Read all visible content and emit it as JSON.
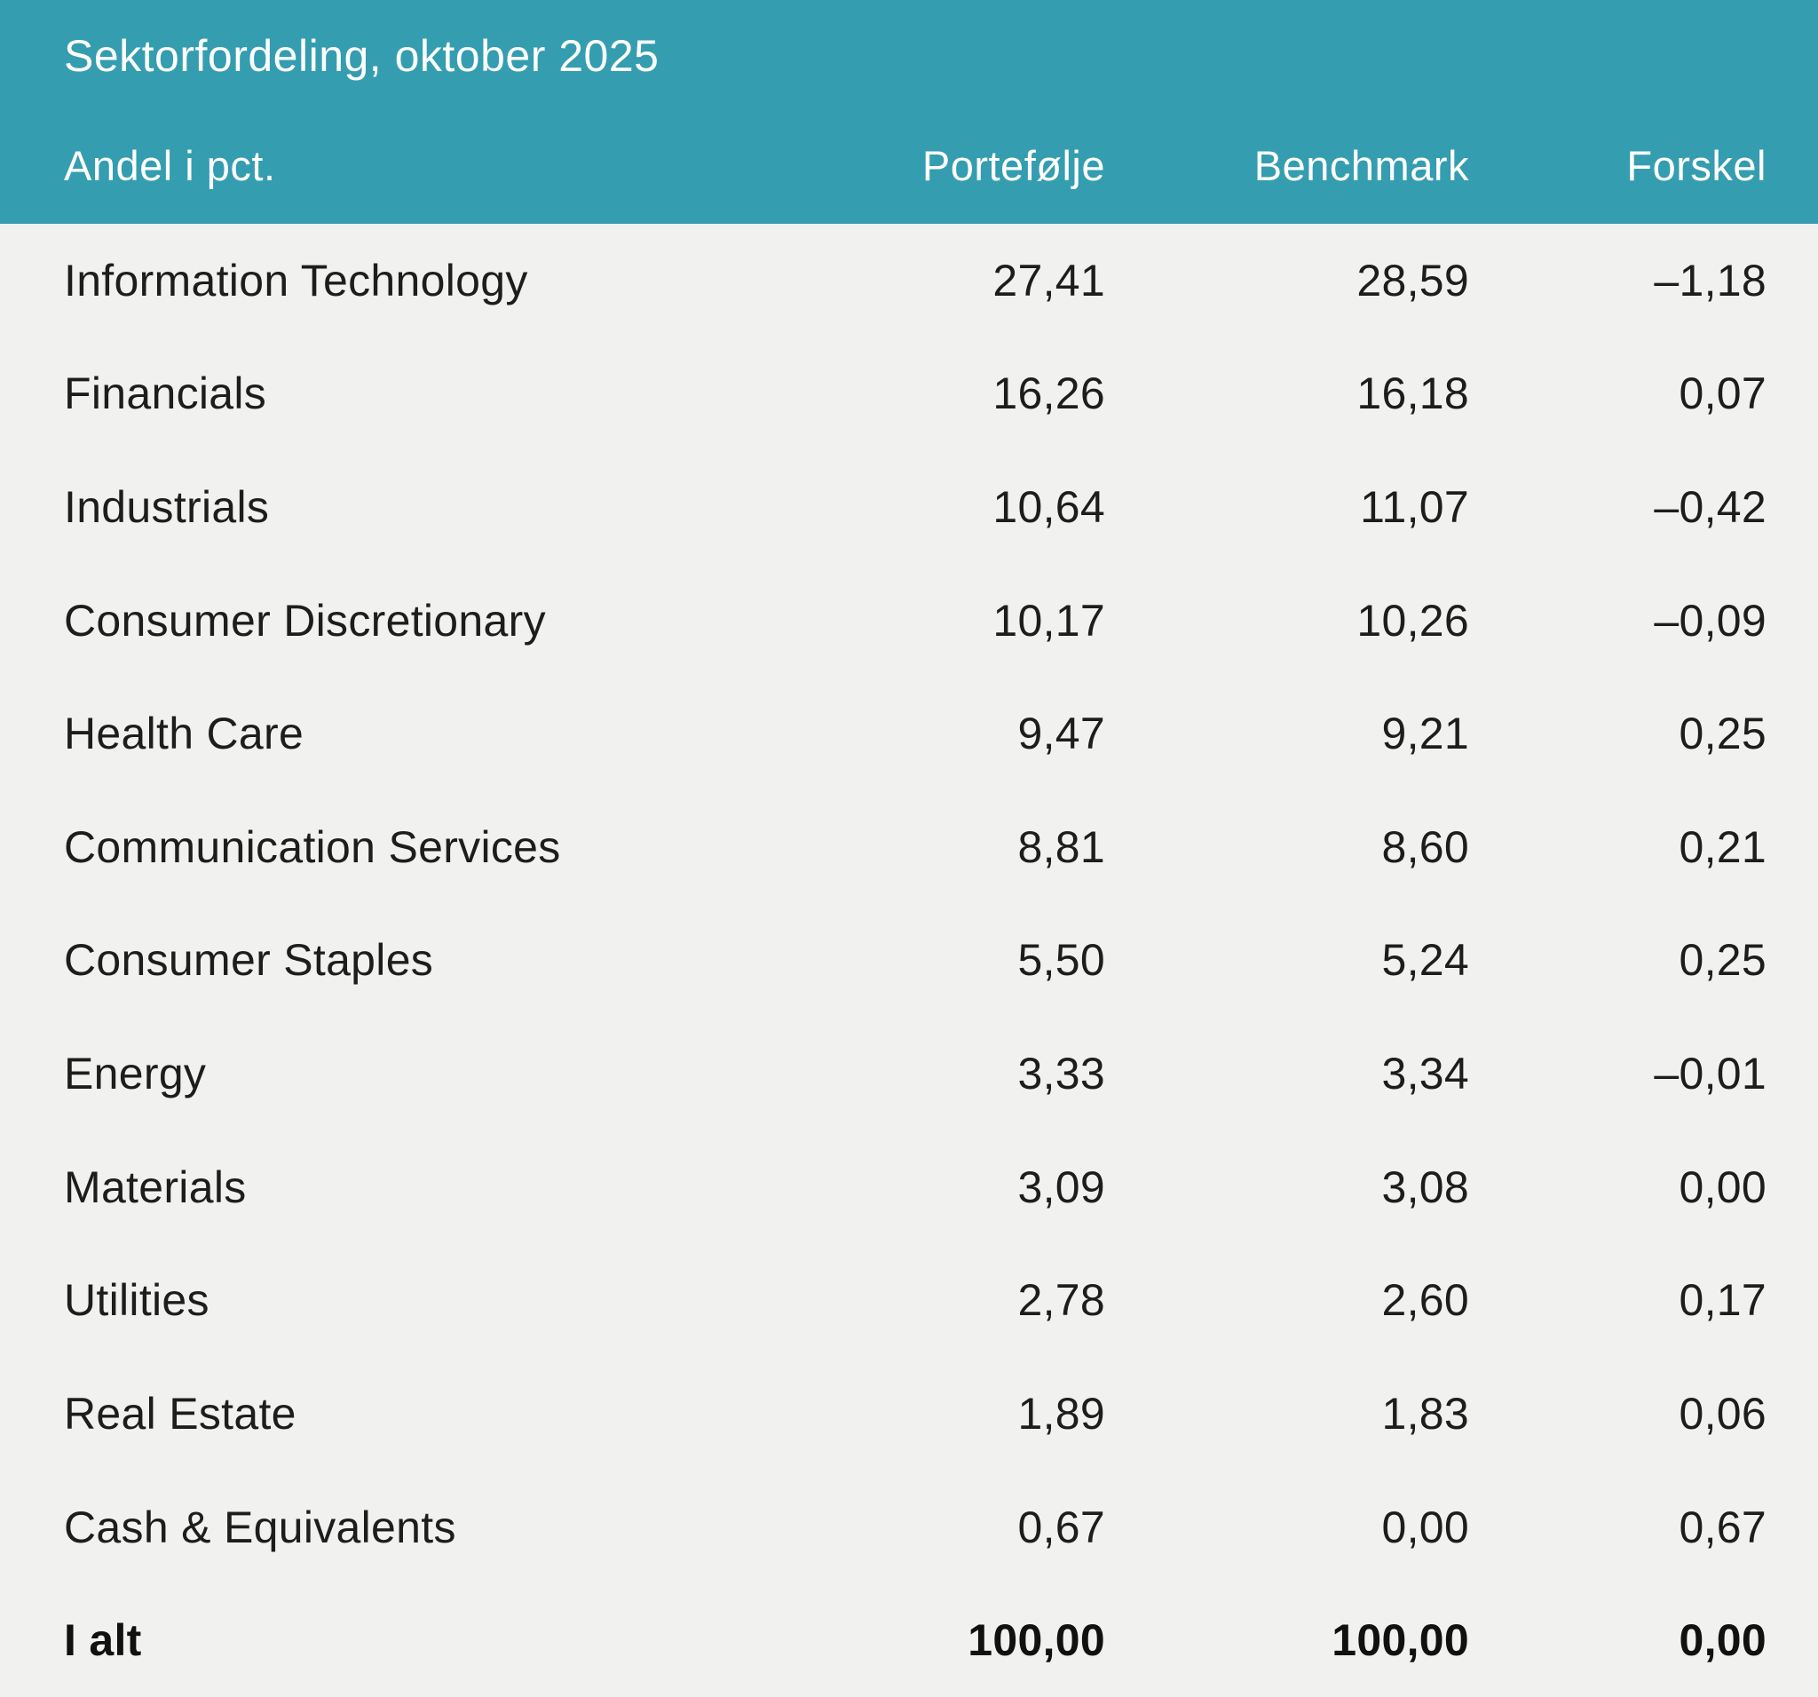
{
  "colors": {
    "header_bg": "#359db0",
    "body_bg": "#f1f1ef",
    "header_text": "#ffffff",
    "body_text": "#1d1d1b",
    "total_text": "#111110"
  },
  "header": {
    "title": "Sektorfordeling, oktober 2025",
    "columns": {
      "label": "Andel i pct.",
      "portfolio": "Portefølje",
      "benchmark": "Benchmark",
      "difference": "Forskel"
    }
  },
  "table": {
    "rows": [
      {
        "label": "Information Technology",
        "portfolio": "27,41",
        "benchmark": "28,59",
        "difference": "–1,18"
      },
      {
        "label": "Financials",
        "portfolio": "16,26",
        "benchmark": "16,18",
        "difference": "0,07"
      },
      {
        "label": "Industrials",
        "portfolio": "10,64",
        "benchmark": "11,07",
        "difference": "–0,42"
      },
      {
        "label": "Consumer Discretionary",
        "portfolio": "10,17",
        "benchmark": "10,26",
        "difference": "–0,09"
      },
      {
        "label": "Health Care",
        "portfolio": "9,47",
        "benchmark": "9,21",
        "difference": "0,25"
      },
      {
        "label": "Communication Services",
        "portfolio": "8,81",
        "benchmark": "8,60",
        "difference": "0,21"
      },
      {
        "label": "Consumer Staples",
        "portfolio": "5,50",
        "benchmark": "5,24",
        "difference": "0,25"
      },
      {
        "label": "Energy",
        "portfolio": "3,33",
        "benchmark": "3,34",
        "difference": "–0,01"
      },
      {
        "label": "Materials",
        "portfolio": "3,09",
        "benchmark": "3,08",
        "difference": "0,00"
      },
      {
        "label": "Utilities",
        "portfolio": "2,78",
        "benchmark": "2,60",
        "difference": "0,17"
      },
      {
        "label": "Real Estate",
        "portfolio": "1,89",
        "benchmark": "1,83",
        "difference": "0,06"
      },
      {
        "label": "Cash & Equivalents",
        "portfolio": "0,67",
        "benchmark": "0,00",
        "difference": "0,67"
      }
    ],
    "total": {
      "label": "I alt",
      "portfolio": "100,00",
      "benchmark": "100,00",
      "difference": "0,00"
    }
  }
}
